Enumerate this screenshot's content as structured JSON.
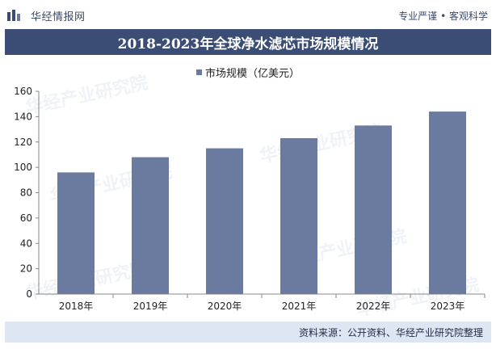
{
  "header": {
    "brand": "华经情报网",
    "slogan": "专业严谨 • 客观科学"
  },
  "title": "2018-2023年全球净水滤芯市场规模情况",
  "footer": {
    "source": "资料来源：公开资料、华经产业研究院整理"
  },
  "watermark": "华经产业研究院",
  "chart_data": {
    "type": "bar",
    "title": "2018-2023年全球净水滤芯市场规模情况",
    "categories": [
      "2018年",
      "2019年",
      "2020年",
      "2021年",
      "2022年",
      "2023年"
    ],
    "series": [
      {
        "name": "市场规模（亿美元）",
        "values": [
          96,
          108,
          115,
          123,
          133,
          144
        ],
        "color": "#6a7b9f"
      }
    ],
    "xlabel": "",
    "ylabel": "",
    "ylim": [
      0,
      160
    ],
    "yticks": [
      0,
      20,
      40,
      60,
      80,
      100,
      120,
      140,
      160
    ],
    "grid": false,
    "legend": "top-center"
  }
}
